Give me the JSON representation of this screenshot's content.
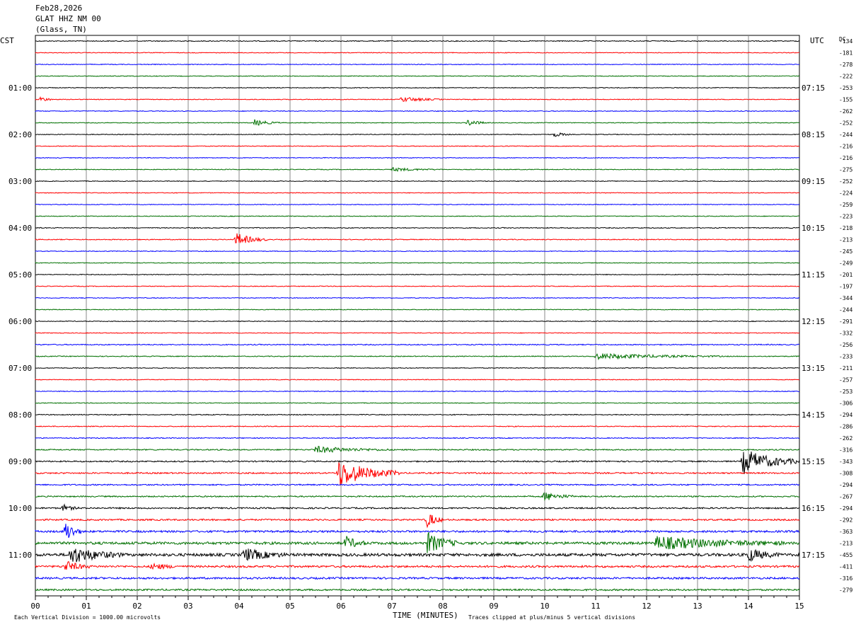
{
  "header": {
    "date": "Feb28,2026",
    "station": "GLAT HHZ NM 00",
    "location": "(Glass, TN)"
  },
  "chart_data": {
    "type": "line",
    "title": "GLAT HHZ NM 00",
    "subtitle": "(Glass, TN)",
    "date": "Feb28,2026",
    "left_axis_label": "CST",
    "right_axis_label": "UTC",
    "dc_label": "DC",
    "xlabel": "TIME (MINUTES)",
    "x_ticks": [
      "00",
      "01",
      "02",
      "03",
      "04",
      "05",
      "06",
      "07",
      "08",
      "09",
      "10",
      "11",
      "12",
      "13",
      "14",
      "15"
    ],
    "xlim": [
      0,
      15
    ],
    "grid": "vertical every minute",
    "trace_colors": [
      "#000000",
      "#ff0000",
      "#0000ff",
      "#007000"
    ],
    "cst_labels": [
      "01:00",
      "02:00",
      "03:00",
      "04:00",
      "05:00",
      "06:00",
      "07:00",
      "08:00",
      "09:00",
      "10:00",
      "11:00"
    ],
    "utc_labels": [
      "07:15",
      "08:15",
      "09:15",
      "10:15",
      "11:15",
      "12:15",
      "13:15",
      "14:15",
      "15:15",
      "16:15",
      "17:15"
    ],
    "dc_offsets": [
      "-134",
      "-181",
      "-278",
      "-222",
      "-253",
      "-155",
      "-262",
      "-252",
      "-244",
      "-216",
      "-216",
      "-275",
      "-252",
      "-224",
      "-259",
      "-223",
      "-218",
      "-213",
      "-245",
      "-249",
      "-201",
      "-197",
      "-344",
      "-244",
      "-291",
      "-332",
      "-256",
      "-233",
      "-211",
      "-257",
      "-253",
      "-306",
      "-294",
      "-286",
      "-262",
      "-316",
      "-343",
      "-308",
      "-294",
      "-267",
      "-294",
      "-292",
      "-363",
      "-213",
      "-455",
      "-411",
      "-316",
      "-279"
    ],
    "events": [
      {
        "trace": 5,
        "minute": 0.1,
        "amp": 1.2,
        "dur": 0.3
      },
      {
        "trace": 5,
        "minute": 7.2,
        "amp": 1.2,
        "dur": 0.8
      },
      {
        "trace": 7,
        "minute": 4.3,
        "amp": 1.5,
        "dur": 0.5
      },
      {
        "trace": 7,
        "minute": 8.5,
        "amp": 1.5,
        "dur": 0.4
      },
      {
        "trace": 8,
        "minute": 10.2,
        "amp": 1.2,
        "dur": 0.3
      },
      {
        "trace": 11,
        "minute": 7.0,
        "amp": 0.8,
        "dur": 1.0
      },
      {
        "trace": 17,
        "minute": 3.95,
        "amp": 3.0,
        "dur": 0.6
      },
      {
        "trace": 27,
        "minute": 11.0,
        "amp": 1.3,
        "dur": 2.5
      },
      {
        "trace": 35,
        "minute": 5.5,
        "amp": 1.5,
        "dur": 1.5
      },
      {
        "trace": 36,
        "minute": 13.9,
        "amp": 6.0,
        "dur": 1.1
      },
      {
        "trace": 37,
        "minute": 5.95,
        "amp": 6.5,
        "dur": 1.2
      },
      {
        "trace": 39,
        "minute": 10.0,
        "amp": 2.0,
        "dur": 0.6
      },
      {
        "trace": 40,
        "minute": 0.55,
        "amp": 1.5,
        "dur": 0.3
      },
      {
        "trace": 41,
        "minute": 7.7,
        "amp": 4.0,
        "dur": 0.3
      },
      {
        "trace": 42,
        "minute": 0.6,
        "amp": 5.0,
        "dur": 0.3
      },
      {
        "trace": 43,
        "minute": 7.7,
        "amp": 5.0,
        "dur": 0.6
      },
      {
        "trace": 43,
        "minute": 6.1,
        "amp": 3.0,
        "dur": 0.4
      },
      {
        "trace": 43,
        "minute": 12.2,
        "amp": 3.0,
        "dur": 2.5
      },
      {
        "trace": 44,
        "minute": 0.7,
        "amp": 4.0,
        "dur": 1.0
      },
      {
        "trace": 44,
        "minute": 4.1,
        "amp": 3.0,
        "dur": 0.8
      },
      {
        "trace": 44,
        "minute": 14.0,
        "amp": 3.0,
        "dur": 0.6
      },
      {
        "trace": 45,
        "minute": 0.6,
        "amp": 2.5,
        "dur": 0.5
      },
      {
        "trace": 45,
        "minute": 2.3,
        "amp": 1.5,
        "dur": 0.5
      }
    ],
    "noise_levels": [
      0.6,
      0.5,
      0.5,
      0.5,
      0.5,
      0.5,
      0.5,
      0.5,
      0.5,
      0.5,
      0.5,
      0.5,
      0.5,
      0.5,
      0.5,
      0.5,
      0.6,
      0.6,
      0.5,
      0.5,
      0.5,
      0.5,
      0.5,
      0.5,
      0.5,
      0.5,
      0.7,
      0.6,
      0.5,
      0.5,
      0.5,
      0.5,
      0.6,
      0.6,
      0.6,
      0.8,
      0.9,
      1.0,
      0.9,
      0.9,
      1.0,
      1.1,
      1.4,
      1.8,
      2.0,
      1.4,
      1.3,
      1.2
    ]
  },
  "footer": {
    "scale_note": "Each Vertical Division = 1000.00 microvolts",
    "clip_note": "Traces clipped at plus/minus 5 vertical divisions"
  }
}
